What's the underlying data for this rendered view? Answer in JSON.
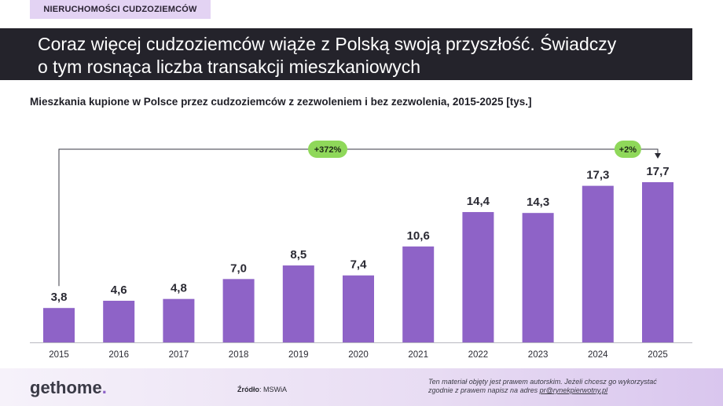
{
  "header": {
    "tag": "NIERUCHOMOŚCI CUDZOZIEMCÓW",
    "headline_line1": "Coraz więcej cudzoziemców wiąże z Polską swoją przyszłość. Świadczy",
    "headline_line2": "o tym rosnąca liczba transakcji mieszkaniowych"
  },
  "chart_data": {
    "type": "bar",
    "title": "Mieszkania kupione w Polsce przez cudzoziemców z zezwoleniem i bez zezwolenia, 2015-2025  [tys.]",
    "categories": [
      "2015",
      "2016",
      "2017",
      "2018",
      "2019",
      "2020",
      "2021",
      "2022",
      "2023",
      "2024",
      "2025"
    ],
    "values": [
      3.8,
      4.6,
      4.8,
      7.0,
      8.5,
      7.4,
      10.6,
      14.4,
      14.3,
      17.3,
      17.7
    ],
    "value_labels": [
      "3,8",
      "4,6",
      "4,8",
      "7,0",
      "8,5",
      "7,4",
      "10,6",
      "14,4",
      "14,3",
      "17,3",
      "17,7"
    ],
    "ylim": [
      0,
      20
    ],
    "grid": false,
    "bar_color": "#8e63c7",
    "annotations": [
      {
        "label": "+372%",
        "from": "2015",
        "to": "2025"
      },
      {
        "label": "+2%",
        "from": "2024",
        "to": "2025"
      }
    ],
    "annotation_color": "#8fd85a"
  },
  "footer": {
    "logo_main": "gethome",
    "logo_dot": ".",
    "source_label": "Źródło",
    "source_value": ": MSWiA",
    "copyright_line1": "Ten materiał objęty jest prawem autorskim. Jeżeli chcesz go wykorzystać",
    "copyright_line2": "zgodnie z prawem napisz na adres ",
    "copyright_email": "pr@rynekpierwotny.pl"
  }
}
